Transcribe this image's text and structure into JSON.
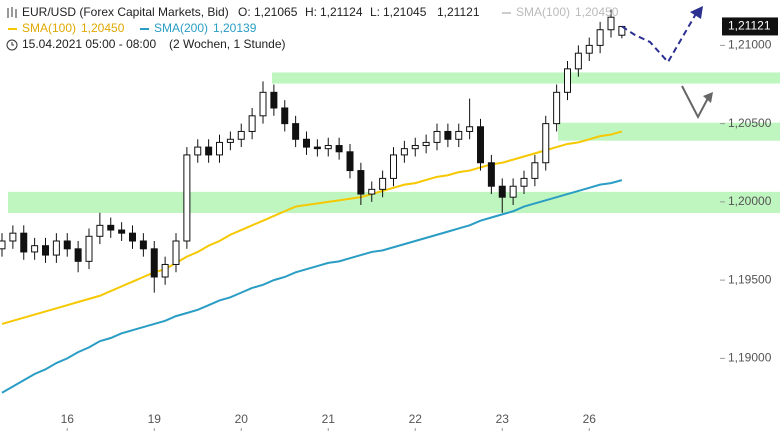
{
  "chart_data": {
    "type": "candlestick",
    "title": "EUR/USD (Forex Capital Markets, Bid)",
    "ohlc_labels": [
      {
        "key": "O:",
        "label": "1,21065"
      },
      {
        "key": "H:",
        "label": "1,21124"
      },
      {
        "key": "L:",
        "label": "1,21045"
      },
      {
        "label": "1,21121"
      }
    ],
    "date_range": "15.04.2021 05:00 - 08:00",
    "period": "(2 Wochen, 1 Stunde)",
    "categories": [
      null,
      null,
      null,
      null,
      null,
      null,
      "16",
      null,
      null,
      null,
      null,
      null,
      null,
      null,
      "19",
      null,
      null,
      null,
      null,
      null,
      null,
      null,
      "20",
      null,
      null,
      null,
      null,
      null,
      null,
      null,
      "21",
      null,
      null,
      null,
      null,
      null,
      null,
      null,
      "22",
      null,
      null,
      null,
      null,
      null,
      null,
      null,
      "23",
      null,
      null,
      null,
      null,
      null,
      null,
      null,
      "26",
      null,
      null,
      null
    ],
    "open": [
      1.197,
      1.1975,
      1.198,
      1.1968,
      1.1972,
      1.1966,
      1.1975,
      1.197,
      1.1962,
      1.1978,
      1.1985,
      1.1982,
      1.198,
      1.1975,
      1.197,
      1.1952,
      1.196,
      1.1975,
      1.203,
      1.2035,
      1.203,
      1.2038,
      1.204,
      1.2045,
      1.2055,
      1.207,
      1.206,
      1.205,
      1.204,
      1.2035,
      1.2034,
      1.2036,
      1.2032,
      1.202,
      1.2005,
      1.2008,
      1.2015,
      1.203,
      1.2034,
      1.2036,
      1.2038,
      1.2045,
      1.204,
      1.2045,
      1.2048,
      1.2025,
      1.201,
      1.2003,
      1.201,
      1.2015,
      1.2025,
      1.205,
      1.207,
      1.2085,
      1.2095,
      1.21,
      1.211,
      1.21065
    ],
    "high": [
      1.198,
      1.1985,
      1.1985,
      1.1977,
      1.1977,
      1.198,
      1.198,
      1.1975,
      1.1983,
      1.1993,
      1.199,
      1.1987,
      1.1985,
      1.198,
      1.1975,
      1.1965,
      1.198,
      1.2035,
      1.204,
      1.204,
      1.2043,
      1.2045,
      1.205,
      1.206,
      1.2077,
      1.2075,
      1.2065,
      1.2055,
      1.2045,
      1.204,
      1.2041,
      1.2041,
      1.2037,
      1.2025,
      1.2013,
      1.202,
      1.2035,
      1.2039,
      1.2041,
      1.2043,
      1.205,
      1.205,
      1.205,
      1.2066,
      1.2053,
      1.203,
      1.2015,
      1.2015,
      1.202,
      1.203,
      1.2055,
      1.2075,
      1.209,
      1.21,
      1.2105,
      1.2115,
      1.2123,
      1.21124
    ],
    "low": [
      1.1965,
      1.197,
      1.1963,
      1.1963,
      1.1961,
      1.1961,
      1.1965,
      1.1955,
      1.1957,
      1.1973,
      1.1977,
      1.1975,
      1.197,
      1.1965,
      1.1942,
      1.1947,
      1.1955,
      1.197,
      1.2025,
      1.2025,
      1.2025,
      1.2033,
      1.2035,
      1.204,
      1.205,
      1.2055,
      1.2045,
      1.2035,
      1.203,
      1.2029,
      1.2029,
      1.2027,
      1.2015,
      1.1998,
      1.2,
      1.2003,
      1.201,
      1.2025,
      1.2029,
      1.2031,
      1.2033,
      1.2035,
      1.2035,
      1.204,
      1.202,
      1.2005,
      1.1993,
      1.1998,
      1.2005,
      1.201,
      1.202,
      1.2045,
      1.2065,
      1.208,
      1.209,
      1.2095,
      1.2105,
      1.21045
    ],
    "close": [
      1.1975,
      1.198,
      1.1968,
      1.1972,
      1.1966,
      1.1975,
      1.197,
      1.1962,
      1.1978,
      1.1985,
      1.1982,
      1.198,
      1.1975,
      1.197,
      1.1952,
      1.196,
      1.1975,
      1.203,
      1.2035,
      1.203,
      1.2038,
      1.204,
      1.2045,
      1.2055,
      1.207,
      1.206,
      1.205,
      1.204,
      1.2035,
      1.2034,
      1.2036,
      1.2032,
      1.202,
      1.2005,
      1.2008,
      1.2015,
      1.203,
      1.2034,
      1.2036,
      1.2038,
      1.2045,
      1.204,
      1.2045,
      1.2048,
      1.2025,
      1.201,
      1.2003,
      1.201,
      1.2015,
      1.2025,
      1.205,
      1.207,
      1.2085,
      1.2095,
      1.21,
      1.211,
      1.2118,
      1.21121
    ],
    "candle_color": "#111111",
    "series": [
      {
        "name": "SMA(100)",
        "color": "#f5c800",
        "label_color": "#e0a800",
        "last_label": "1,20450",
        "values": [
          1.1922,
          1.1924,
          1.1926,
          1.1928,
          1.193,
          1.1932,
          1.1934,
          1.1936,
          1.1938,
          1.194,
          1.1943,
          1.1946,
          1.1949,
          1.1952,
          1.1955,
          1.1957,
          1.1961,
          1.1965,
          1.1968,
          1.1972,
          1.1975,
          1.1979,
          1.1982,
          1.1985,
          1.1988,
          1.1991,
          1.1994,
          1.1997,
          1.1998,
          1.1999,
          1.2,
          1.2001,
          1.2002,
          1.2003,
          1.2005,
          1.2007,
          1.2009,
          1.2011,
          1.2012,
          1.2014,
          1.2016,
          1.2017,
          1.2019,
          1.202,
          1.2022,
          1.2024,
          1.2025,
          1.2027,
          1.2029,
          1.2031,
          1.2033,
          1.2035,
          1.2037,
          1.2038,
          1.204,
          1.2042,
          1.2043,
          1.2045
        ]
      },
      {
        "name": "SMA(200)",
        "color": "#2a9dc4",
        "label_color": "#2a9dc4",
        "last_label": "1,20139",
        "values": [
          1.1878,
          1.1882,
          1.1886,
          1.189,
          1.1893,
          1.1897,
          1.19,
          1.1904,
          1.1907,
          1.1911,
          1.1913,
          1.1916,
          1.1918,
          1.192,
          1.1922,
          1.1924,
          1.1927,
          1.1929,
          1.1931,
          1.1934,
          1.1937,
          1.1939,
          1.1942,
          1.1945,
          1.1947,
          1.195,
          1.1952,
          1.1955,
          1.1957,
          1.1959,
          1.1961,
          1.1962,
          1.1964,
          1.1966,
          1.1968,
          1.1969,
          1.1971,
          1.1973,
          1.1975,
          1.1977,
          1.1979,
          1.1981,
          1.1983,
          1.1985,
          1.1988,
          1.199,
          1.1992,
          1.1994,
          1.1997,
          1.1999,
          1.2001,
          1.2003,
          1.2005,
          1.2007,
          1.2009,
          1.2011,
          1.2012,
          1.20139
        ]
      }
    ],
    "zones": [
      {
        "from": 1.20756,
        "to": 1.20827
      },
      {
        "from": 1.20391,
        "to": 1.20506
      },
      {
        "from": 1.19929,
        "to": 1.20064
      }
    ],
    "zone_color": "#bff5bf",
    "ylim": [
      1.1867,
      1.2129
    ],
    "yticks": [
      {
        "value": 1.19,
        "label": "1,19000"
      },
      {
        "value": 1.195,
        "label": "1,19500"
      },
      {
        "value": 1.2,
        "label": "1,20000"
      },
      {
        "value": 1.205,
        "label": "1,20500"
      },
      {
        "value": 1.21,
        "label": "1,21000"
      }
    ]
  }
}
